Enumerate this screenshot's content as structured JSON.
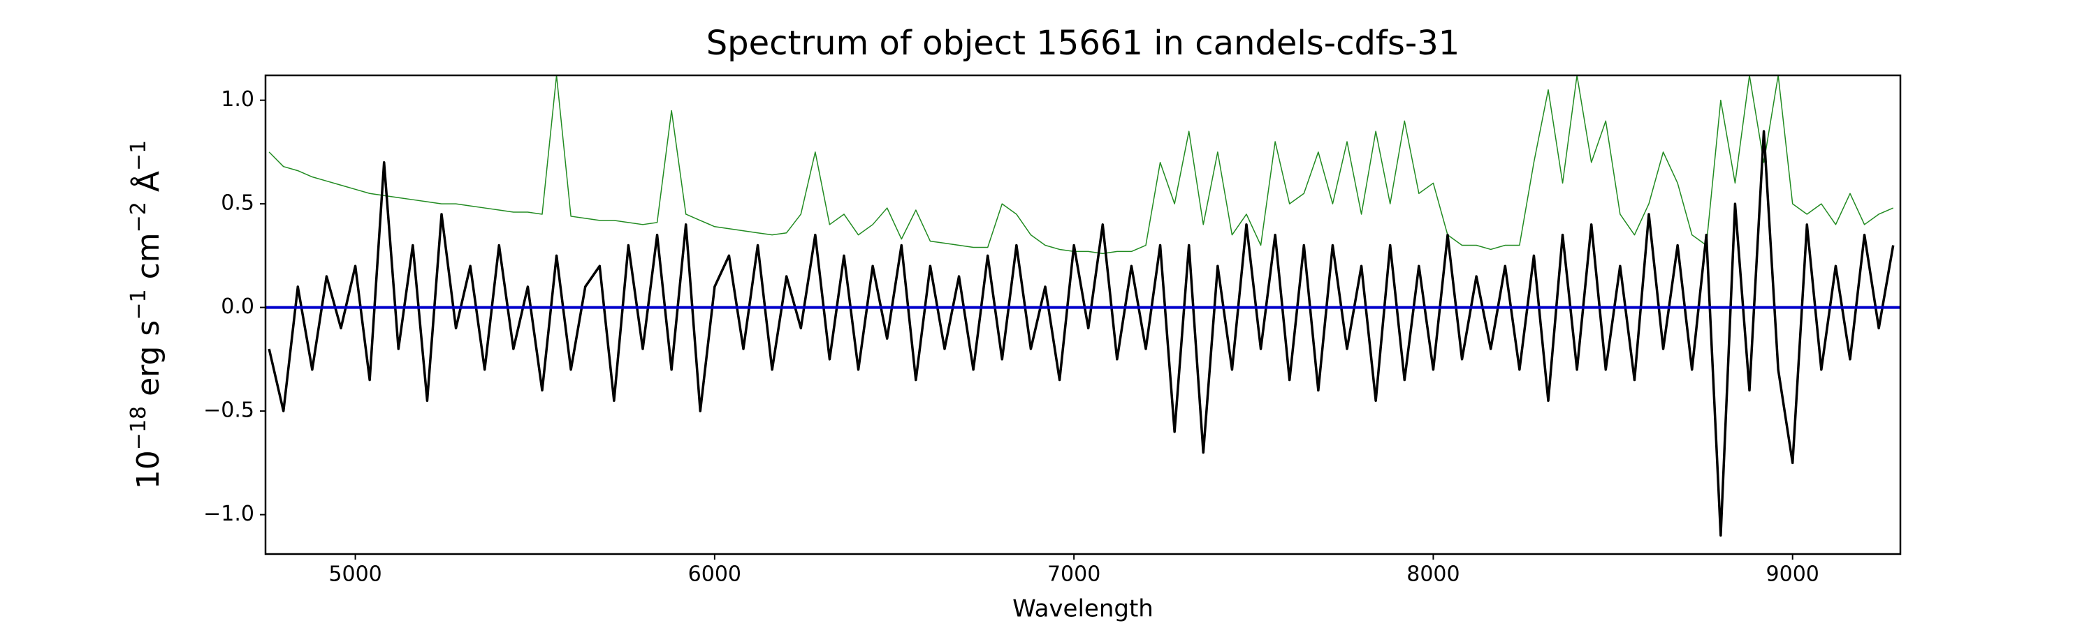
{
  "chart_data": {
    "type": "line",
    "title": "Spectrum of object 15661 in candels-cdfs-31",
    "xlabel": "Wavelength",
    "ylabel": [
      "10",
      "−18",
      " erg s",
      "−1",
      " cm",
      "−2",
      " Å",
      "−1"
    ],
    "xlim": [
      4750,
      9300
    ],
    "xticks": [
      5000,
      6000,
      7000,
      8000,
      9000
    ],
    "ylim": [
      -1.19,
      1.12
    ],
    "yticks": [
      {
        "value": -1.0,
        "label": "−1.0"
      },
      {
        "value": -0.5,
        "label": "−0.5"
      },
      {
        "value": 0.0,
        "label": "0.0"
      },
      {
        "value": 0.5,
        "label": "0.5"
      },
      {
        "value": 1.0,
        "label": "1.0"
      }
    ],
    "series": [
      {
        "color": "#228b22",
        "width": 1.5,
        "x": [
          4760,
          4800,
          4840,
          4880,
          4920,
          4960,
          5000,
          5040,
          5080,
          5120,
          5160,
          5200,
          5240,
          5280,
          5320,
          5360,
          5400,
          5440,
          5480,
          5520,
          5560,
          5600,
          5640,
          5680,
          5720,
          5760,
          5800,
          5840,
          5880,
          5920,
          5960,
          6000,
          6040,
          6080,
          6120,
          6160,
          6200,
          6240,
          6280,
          6320,
          6360,
          6400,
          6440,
          6480,
          6520,
          6560,
          6600,
          6640,
          6680,
          6720,
          6760,
          6800,
          6840,
          6880,
          6920,
          6960,
          7000,
          7040,
          7080,
          7120,
          7160,
          7200,
          7240,
          7280,
          7320,
          7360,
          7400,
          7440,
          7480,
          7520,
          7560,
          7600,
          7640,
          7680,
          7720,
          7760,
          7800,
          7840,
          7880,
          7920,
          7960,
          8000,
          8040,
          8080,
          8120,
          8160,
          8200,
          8240,
          8280,
          8320,
          8360,
          8400,
          8440,
          8480,
          8520,
          8560,
          8600,
          8640,
          8680,
          8720,
          8760,
          8800,
          8840,
          8880,
          8920,
          8960,
          9000,
          9040,
          9080,
          9120,
          9160,
          9200,
          9240,
          9280
        ],
        "values": [
          0.75,
          0.68,
          0.66,
          0.63,
          0.61,
          0.59,
          0.57,
          0.55,
          0.54,
          0.53,
          0.52,
          0.51,
          0.5,
          0.5,
          0.49,
          0.48,
          0.47,
          0.46,
          0.46,
          0.45,
          1.12,
          0.44,
          0.43,
          0.42,
          0.42,
          0.41,
          0.4,
          0.41,
          0.95,
          0.45,
          0.42,
          0.39,
          0.38,
          0.37,
          0.36,
          0.35,
          0.36,
          0.45,
          0.75,
          0.4,
          0.45,
          0.35,
          0.4,
          0.48,
          0.33,
          0.47,
          0.32,
          0.31,
          0.3,
          0.29,
          0.29,
          0.5,
          0.45,
          0.35,
          0.3,
          0.28,
          0.27,
          0.27,
          0.26,
          0.27,
          0.27,
          0.3,
          0.7,
          0.5,
          0.85,
          0.4,
          0.75,
          0.35,
          0.45,
          0.3,
          0.8,
          0.5,
          0.55,
          0.75,
          0.5,
          0.8,
          0.45,
          0.85,
          0.5,
          0.9,
          0.55,
          0.6,
          0.35,
          0.3,
          0.3,
          0.28,
          0.3,
          0.3,
          0.7,
          1.05,
          0.6,
          1.12,
          0.7,
          0.9,
          0.45,
          0.35,
          0.5,
          0.75,
          0.6,
          0.35,
          0.3,
          1.0,
          0.6,
          1.12,
          0.7,
          1.12,
          0.5,
          0.45,
          0.5,
          0.4,
          0.55,
          0.4,
          0.45,
          0.48
        ]
      },
      {
        "color": "#000000",
        "width": 3.5,
        "x": [
          4760,
          4800,
          4840,
          4880,
          4920,
          4960,
          5000,
          5040,
          5080,
          5120,
          5160,
          5200,
          5240,
          5280,
          5320,
          5360,
          5400,
          5440,
          5480,
          5520,
          5560,
          5600,
          5640,
          5680,
          5720,
          5760,
          5800,
          5840,
          5880,
          5920,
          5960,
          6000,
          6040,
          6080,
          6120,
          6160,
          6200,
          6240,
          6280,
          6320,
          6360,
          6400,
          6440,
          6480,
          6520,
          6560,
          6600,
          6640,
          6680,
          6720,
          6760,
          6800,
          6840,
          6880,
          6920,
          6960,
          7000,
          7040,
          7080,
          7120,
          7160,
          7200,
          7240,
          7280,
          7320,
          7360,
          7400,
          7440,
          7480,
          7520,
          7560,
          7600,
          7640,
          7680,
          7720,
          7760,
          7800,
          7840,
          7880,
          7920,
          7960,
          8000,
          8040,
          8080,
          8120,
          8160,
          8200,
          8240,
          8280,
          8320,
          8360,
          8400,
          8440,
          8480,
          8520,
          8560,
          8600,
          8640,
          8680,
          8720,
          8760,
          8800,
          8840,
          8880,
          8920,
          8960,
          9000,
          9040,
          9080,
          9120,
          9160,
          9200,
          9240,
          9280
        ],
        "values": [
          -0.2,
          -0.5,
          0.1,
          -0.3,
          0.15,
          -0.1,
          0.2,
          -0.35,
          0.7,
          -0.2,
          0.3,
          -0.45,
          0.45,
          -0.1,
          0.2,
          -0.3,
          0.3,
          -0.2,
          0.1,
          -0.4,
          0.25,
          -0.3,
          0.1,
          0.2,
          -0.45,
          0.3,
          -0.2,
          0.35,
          -0.3,
          0.4,
          -0.5,
          0.1,
          0.25,
          -0.2,
          0.3,
          -0.3,
          0.15,
          -0.1,
          0.35,
          -0.25,
          0.25,
          -0.3,
          0.2,
          -0.15,
          0.3,
          -0.35,
          0.2,
          -0.2,
          0.15,
          -0.3,
          0.25,
          -0.25,
          0.3,
          -0.2,
          0.1,
          -0.35,
          0.3,
          -0.1,
          0.4,
          -0.25,
          0.2,
          -0.2,
          0.3,
          -0.6,
          0.3,
          -0.7,
          0.2,
          -0.3,
          0.4,
          -0.2,
          0.35,
          -0.35,
          0.3,
          -0.4,
          0.3,
          -0.2,
          0.2,
          -0.45,
          0.3,
          -0.35,
          0.2,
          -0.3,
          0.35,
          -0.25,
          0.15,
          -0.2,
          0.2,
          -0.3,
          0.25,
          -0.45,
          0.35,
          -0.3,
          0.4,
          -0.3,
          0.2,
          -0.35,
          0.45,
          -0.2,
          0.3,
          -0.3,
          0.35,
          -1.1,
          0.5,
          -0.4,
          0.85,
          -0.3,
          -0.75,
          0.4,
          -0.3,
          0.2,
          -0.25,
          0.35,
          -0.1,
          0.3
        ]
      },
      {
        "color": "#0000cc",
        "width": 4,
        "x": [
          4750,
          9300
        ],
        "values": [
          0,
          0
        ]
      }
    ]
  }
}
